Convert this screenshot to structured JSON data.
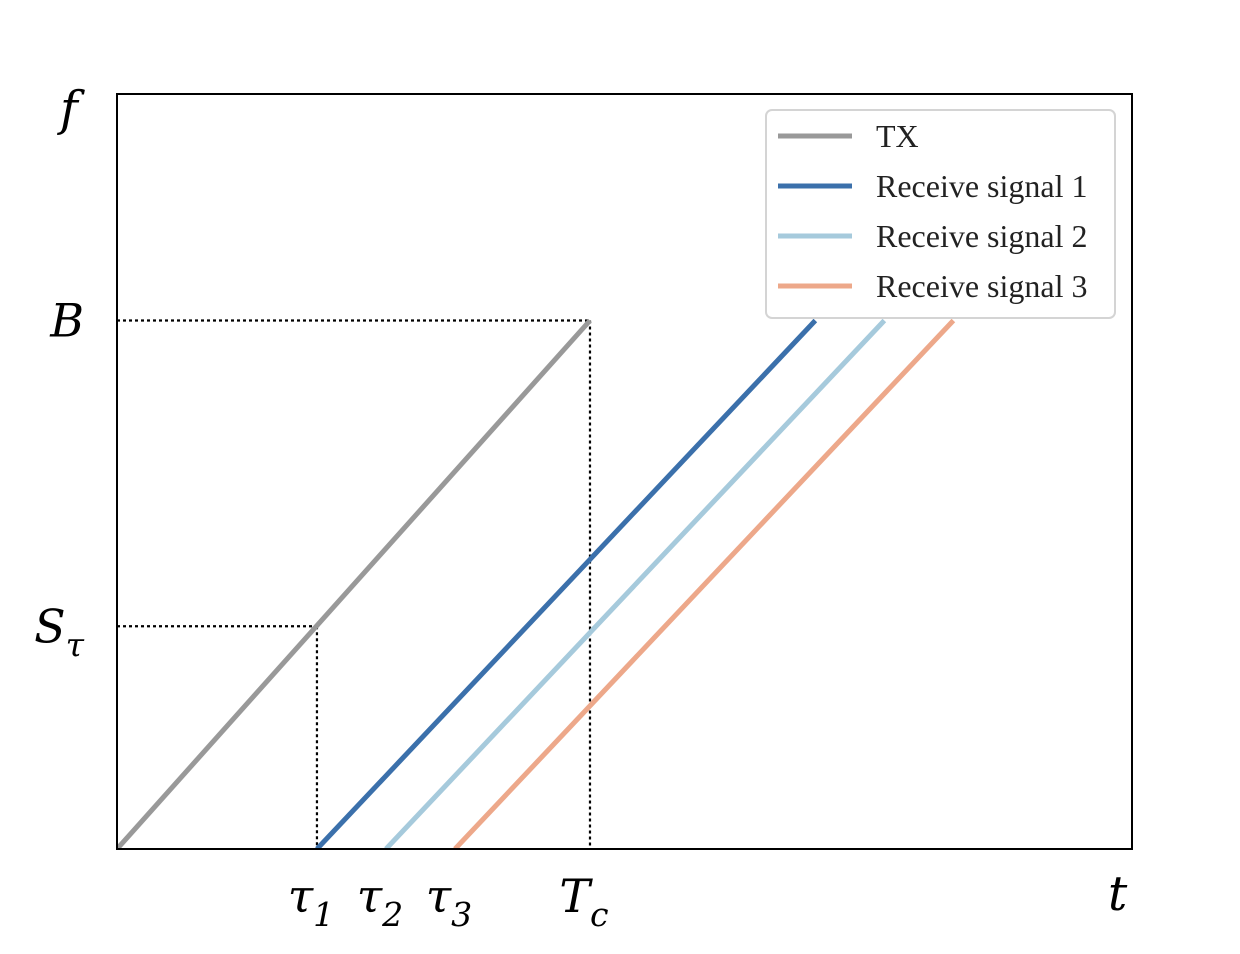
{
  "chart_data": {
    "type": "line",
    "xlabel": "t",
    "ylabel": "f",
    "xlim": [
      0,
      1
    ],
    "ylim": [
      0,
      1
    ],
    "y_tick_labels": [
      {
        "label": "B",
        "sub": "",
        "value": 0.7
      },
      {
        "label": "S",
        "sub": "τ",
        "value": 0.295
      }
    ],
    "x_tick_labels": [
      {
        "label": "τ",
        "sub": "1",
        "value": 0.197
      },
      {
        "label": "τ",
        "sub": "2",
        "value": 0.265
      },
      {
        "label": "τ",
        "sub": "3",
        "value": 0.333
      },
      {
        "label": "T",
        "sub": "c",
        "value": 0.466
      }
    ],
    "series": [
      {
        "name": "TX",
        "color": "#999999",
        "x": [
          0,
          0.466
        ],
        "y": [
          0,
          0.7
        ]
      },
      {
        "name": "Receive signal 1",
        "color": "#3b70ab",
        "x": [
          0.197,
          0.688
        ],
        "y": [
          0,
          0.7
        ]
      },
      {
        "name": "Receive signal 2",
        "color": "#a6cadc",
        "x": [
          0.265,
          0.756
        ],
        "y": [
          0,
          0.7
        ]
      },
      {
        "name": "Receive signal 3",
        "color": "#eda88a",
        "x": [
          0.333,
          0.824
        ],
        "y": [
          0,
          0.7
        ]
      }
    ],
    "guides": [
      {
        "from": [
          0,
          0.7
        ],
        "to": [
          0.466,
          0.7
        ]
      },
      {
        "from": [
          0.466,
          0.7
        ],
        "to": [
          0.466,
          0
        ]
      },
      {
        "from": [
          0,
          0.295
        ],
        "to": [
          0.197,
          0.295
        ]
      },
      {
        "from": [
          0.197,
          0.295
        ],
        "to": [
          0.197,
          0
        ]
      }
    ],
    "legend": "top-right",
    "grid": false
  }
}
